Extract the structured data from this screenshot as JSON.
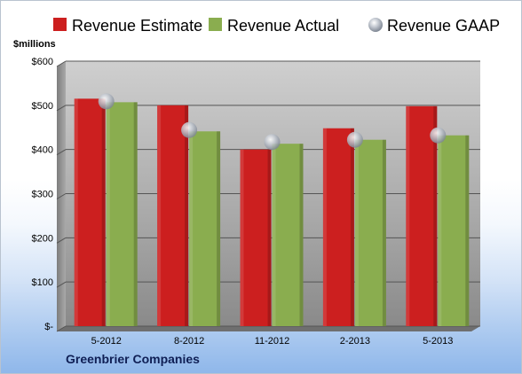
{
  "chart_data": {
    "type": "bar",
    "categories": [
      "5-2012",
      "8-2012",
      "11-2012",
      "2-2013",
      "5-2013"
    ],
    "series": [
      {
        "name": "Revenue Estimate",
        "values": [
          515,
          500,
          400,
          448,
          498
        ],
        "color": "#cc1f1f"
      },
      {
        "name": "Revenue Actual",
        "values": [
          507,
          441,
          413,
          422,
          432
        ],
        "color": "#8aad4f"
      },
      {
        "name": "Revenue GAAP",
        "values": [
          509,
          444,
          417,
          422,
          432
        ],
        "color": "#b9bfc9",
        "marker": "circle"
      }
    ],
    "unit_label": "$millions",
    "y_tick_labels": [
      "$-",
      "$100",
      "$200",
      "$300",
      "$400",
      "$500",
      "$600"
    ],
    "y_ticks": [
      0,
      100,
      200,
      300,
      400,
      500,
      600
    ],
    "ylim": [
      0,
      600
    ],
    "grid": true,
    "legend_position": "top",
    "company": "Greenbrier Companies"
  }
}
